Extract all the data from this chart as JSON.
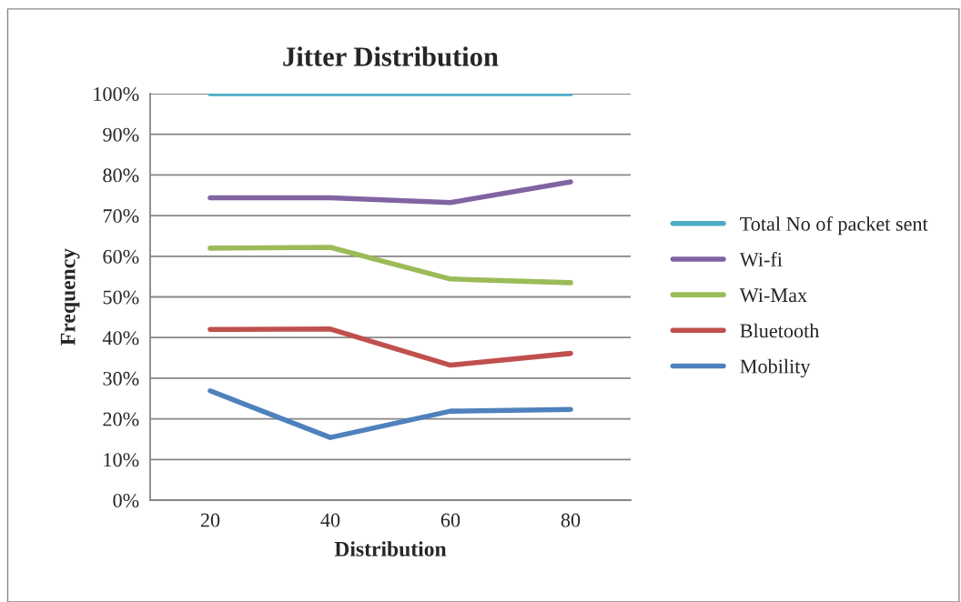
{
  "chart_data": {
    "type": "line",
    "title": "Jitter Distribution",
    "xlabel": "Distribution",
    "ylabel": "Frequency",
    "categories": [
      "20",
      "40",
      "60",
      "80"
    ],
    "series": [
      {
        "name": "Total No of packet sent",
        "color": "#4bacc6",
        "values": [
          100,
          100,
          100,
          100
        ]
      },
      {
        "name": "Wi-fi",
        "color": "#8064a2",
        "values": [
          74.4,
          74.4,
          73.2,
          78.3
        ]
      },
      {
        "name": "Wi-Max",
        "color": "#9bbb59",
        "values": [
          62,
          62.2,
          54.4,
          53.5
        ]
      },
      {
        "name": "Bluetooth",
        "color": "#c0504d",
        "values": [
          42,
          42.1,
          33.2,
          36.1
        ]
      },
      {
        "name": "Mobility",
        "color": "#4f81bd",
        "values": [
          26.9,
          15.4,
          21.9,
          22.3
        ]
      }
    ],
    "ylim": [
      0,
      100
    ],
    "yticks": [
      {
        "value": 0,
        "label": "0%"
      },
      {
        "value": 10,
        "label": "10%"
      },
      {
        "value": 20,
        "label": "20%"
      },
      {
        "value": 30,
        "label": "30%"
      },
      {
        "value": 40,
        "label": "40%"
      },
      {
        "value": 50,
        "label": "50%"
      },
      {
        "value": 60,
        "label": "60%"
      },
      {
        "value": 70,
        "label": "70%"
      },
      {
        "value": 80,
        "label": "80%"
      },
      {
        "value": 90,
        "label": "90%"
      },
      {
        "value": 100,
        "label": "100%"
      }
    ],
    "grid": "y",
    "legend": "right",
    "marker": "none",
    "line_style": "solid"
  }
}
